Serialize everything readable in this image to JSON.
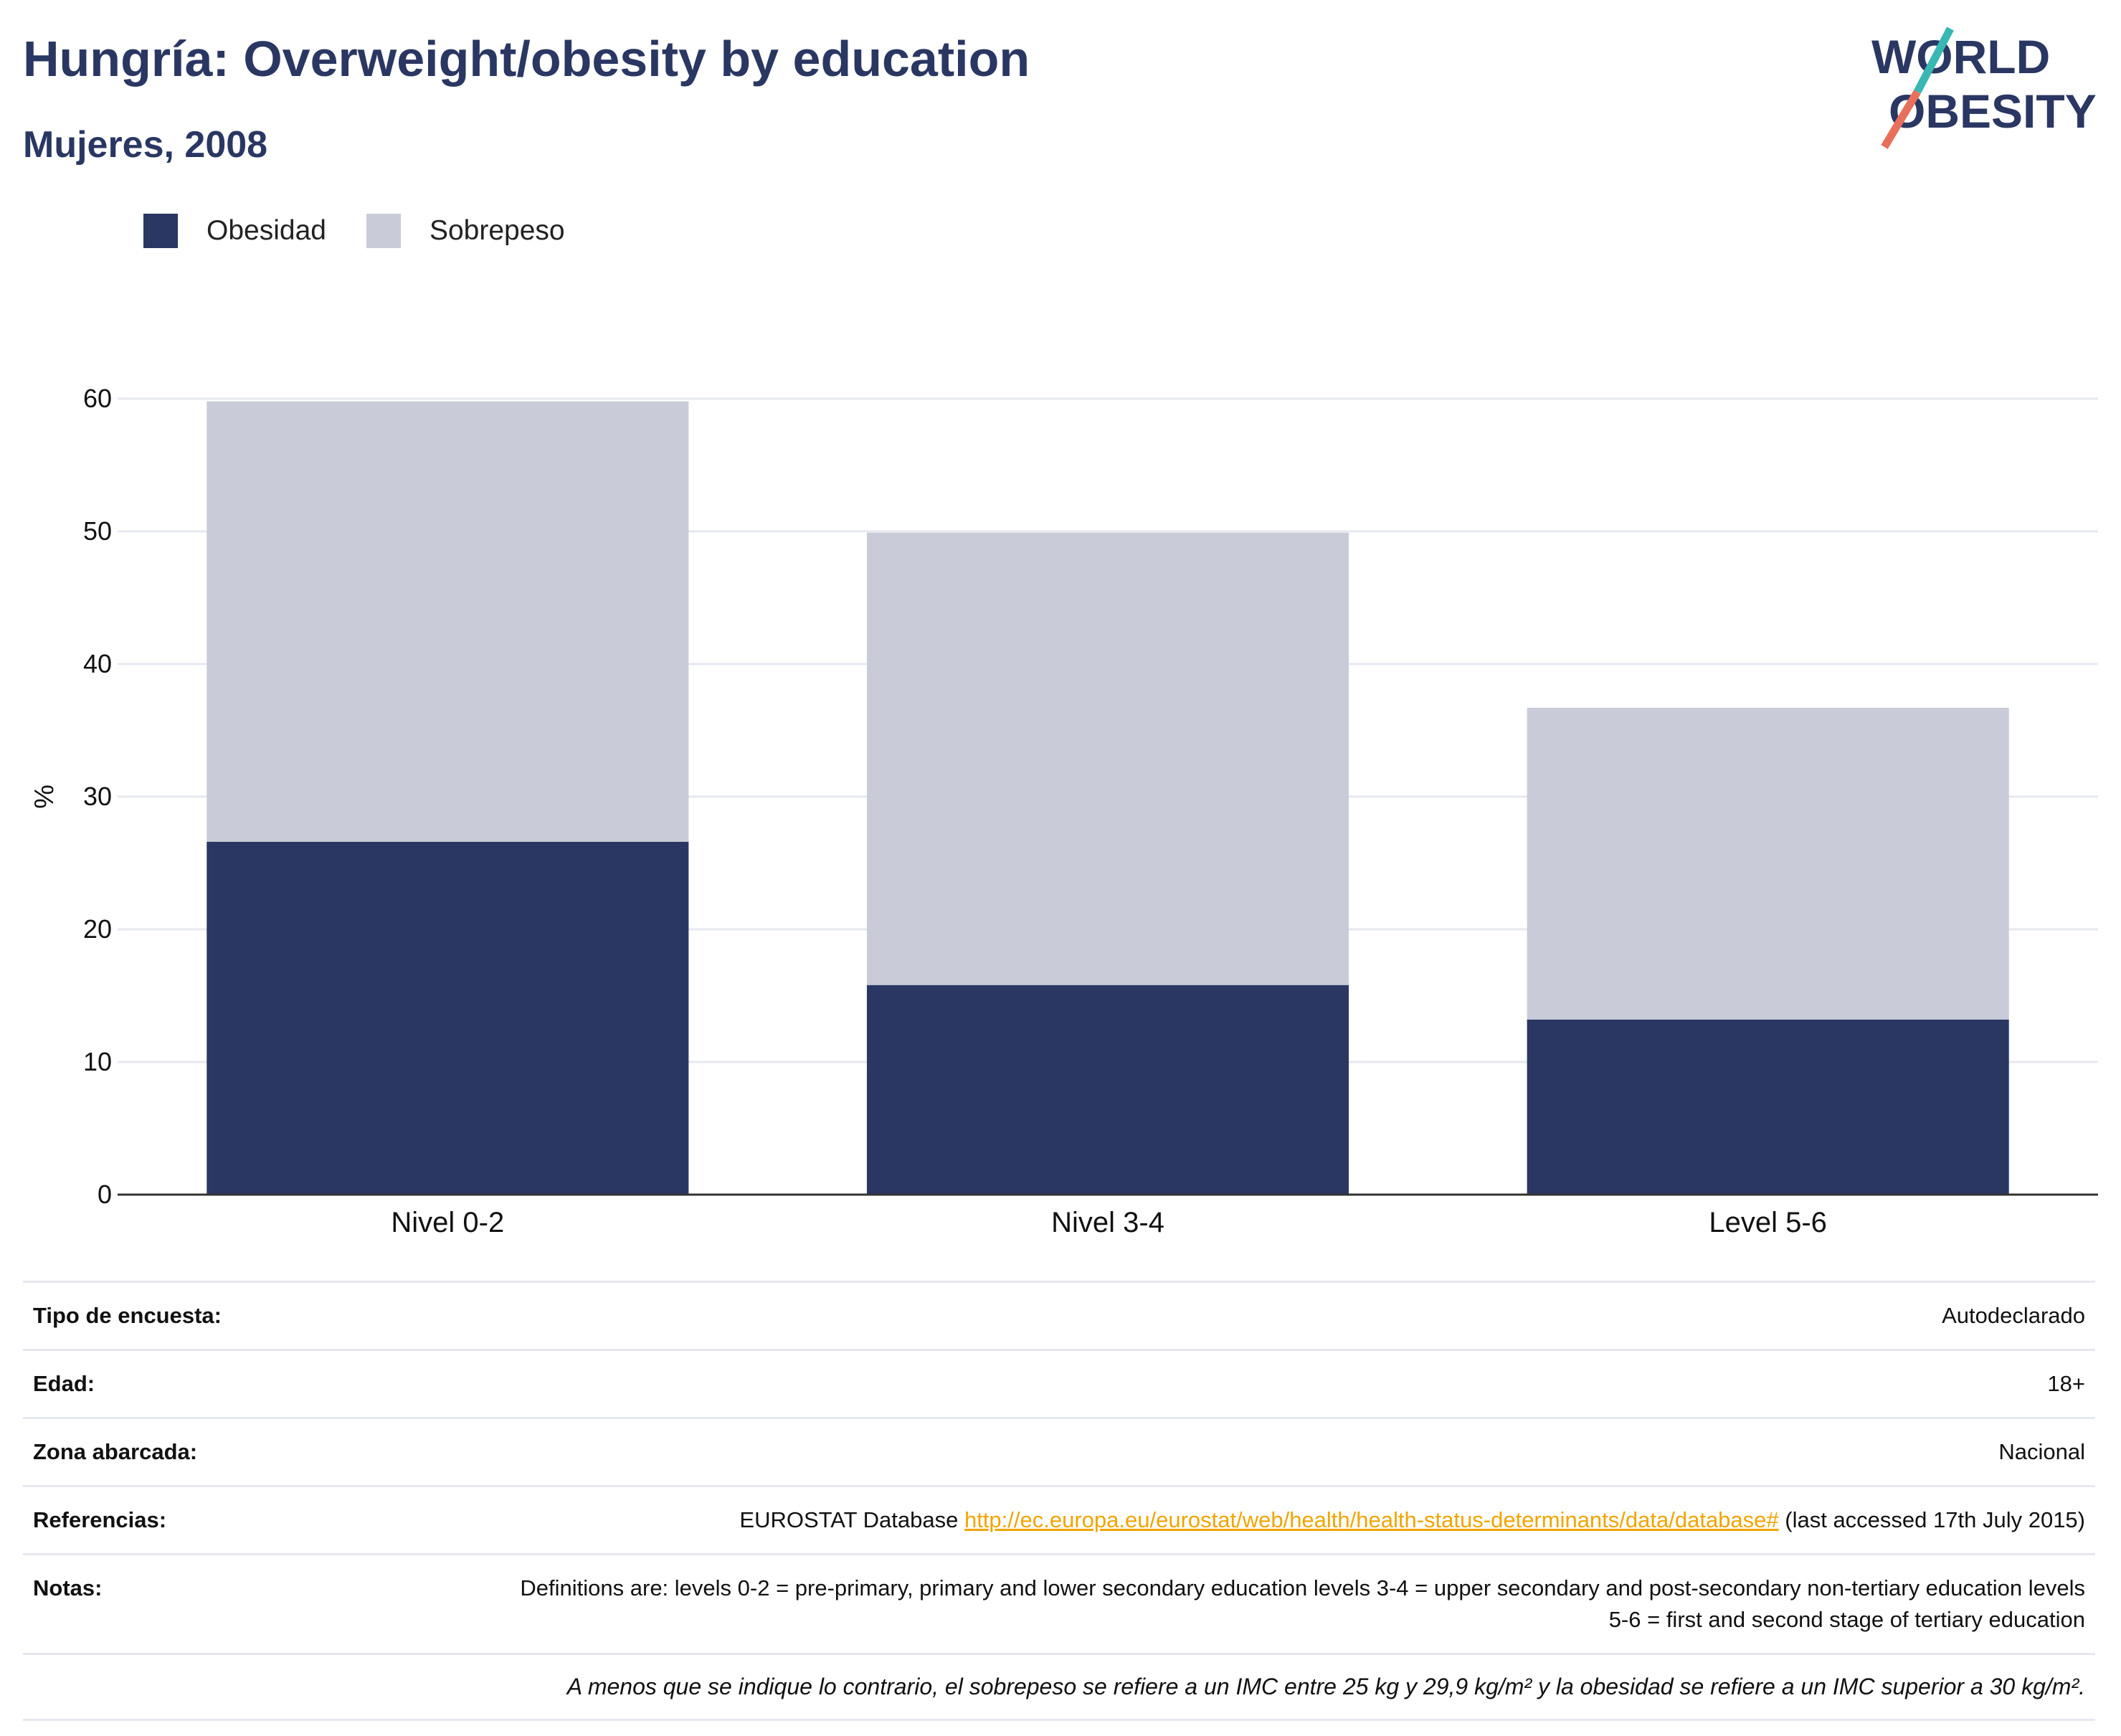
{
  "header": {
    "title": "Hungría: Overweight/obesity by education",
    "subtitle": "Mujeres, 2008"
  },
  "logo": {
    "line1": "WORLD",
    "line2": "OBESITY"
  },
  "colors": {
    "obesity": "#2a3763",
    "overweight": "#c9ccd8",
    "accent_teal": "#38b7b3",
    "accent_coral": "#e8705b",
    "link": "#f0a500"
  },
  "chart_data": {
    "type": "bar",
    "stacked": true,
    "categories": [
      "Nivel 0-2",
      "Nivel 3-4",
      "Level 5-6"
    ],
    "series": [
      {
        "name": "Obesidad",
        "values": [
          26.6,
          15.8,
          13.2
        ]
      },
      {
        "name": "Sobrepeso",
        "values": [
          33.2,
          34.1,
          23.5
        ]
      }
    ],
    "ylabel": "%",
    "ylim": [
      0,
      60
    ],
    "yticks": [
      0,
      10,
      20,
      30,
      40,
      50,
      60
    ],
    "grid": true,
    "legend_position": "top-left"
  },
  "meta": {
    "rows": [
      {
        "label": "Tipo de encuesta:",
        "value": "Autodeclarado"
      },
      {
        "label": "Edad:",
        "value": "18+"
      },
      {
        "label": "Zona abarcada:",
        "value": "Nacional"
      }
    ],
    "references": {
      "label": "Referencias:",
      "prefix": "EUROSTAT Database ",
      "link": "http://ec.europa.eu/eurostat/web/health/health-status-determinants/data/database#",
      "suffix": " (last accessed 17th July 2015)"
    },
    "notes": {
      "label": "Notas:",
      "value": "Definitions are: levels 0-2 = pre-primary, primary and lower secondary education levels 3-4 = upper secondary and post-secondary non-tertiary education levels 5-6 = first and second stage of tertiary education"
    },
    "footnote": "A menos que se indique lo contrario, el sobrepeso se refiere a un IMC entre 25 kg y 29,9 kg/m² y la obesidad se refiere a un IMC superior a 30 kg/m²."
  }
}
